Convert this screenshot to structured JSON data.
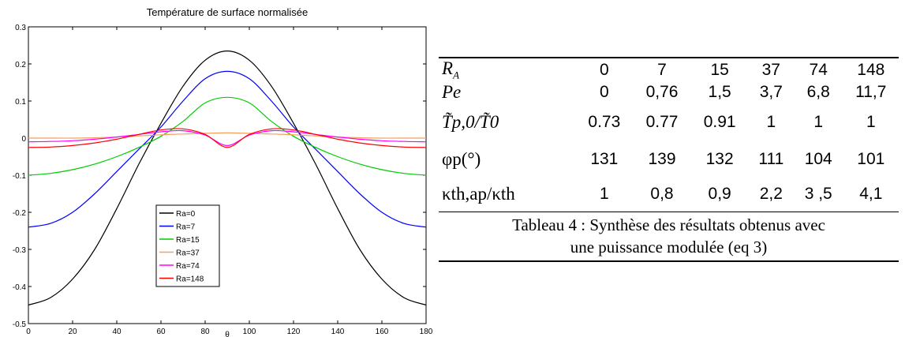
{
  "chart_data": {
    "type": "line",
    "title": "Température de surface normalisée",
    "xlabel": "θ",
    "ylabel": "",
    "xlim": [
      0,
      180
    ],
    "ylim": [
      -0.5,
      0.3
    ],
    "xticks": [
      "0",
      "20",
      "40",
      "60",
      "80",
      "100",
      "120",
      "140",
      "160",
      "180"
    ],
    "yticks": [
      "-0.5",
      "-0.4",
      "-0.3",
      "-0.2",
      "-0.1",
      "0",
      "0.1",
      "0.2",
      "0.3"
    ],
    "grid": false,
    "legend_position": "lower-center",
    "x": [
      0,
      10,
      20,
      30,
      40,
      50,
      60,
      70,
      80,
      90,
      100,
      110,
      120,
      130,
      140,
      150,
      160,
      170,
      180
    ],
    "series": [
      {
        "name": "Ra=0",
        "color": "#000000",
        "values": [
          -0.45,
          -0.43,
          -0.38,
          -0.3,
          -0.19,
          -0.07,
          0.04,
          0.14,
          0.21,
          0.235,
          0.21,
          0.14,
          0.04,
          -0.07,
          -0.19,
          -0.3,
          -0.38,
          -0.43,
          -0.45
        ]
      },
      {
        "name": "Ra=7",
        "color": "#0000ff",
        "values": [
          -0.24,
          -0.23,
          -0.2,
          -0.15,
          -0.09,
          -0.03,
          0.03,
          0.1,
          0.16,
          0.18,
          0.16,
          0.1,
          0.03,
          -0.03,
          -0.09,
          -0.15,
          -0.2,
          -0.23,
          -0.24
        ]
      },
      {
        "name": "Ra=15",
        "color": "#00cc00",
        "values": [
          -0.1,
          -0.095,
          -0.085,
          -0.07,
          -0.05,
          -0.025,
          0.005,
          0.045,
          0.095,
          0.11,
          0.095,
          0.045,
          0.005,
          -0.025,
          -0.05,
          -0.07,
          -0.085,
          -0.095,
          -0.1
        ]
      },
      {
        "name": "Ra=37",
        "color": "#f5a060",
        "values": [
          0,
          0,
          0,
          0.001,
          0.003,
          0.006,
          0.009,
          0.011,
          0.013,
          0.014,
          0.013,
          0.011,
          0.009,
          0.006,
          0.003,
          0.001,
          0,
          0,
          0
        ]
      },
      {
        "name": "Ra=74",
        "color": "#ff00ff",
        "values": [
          -0.01,
          -0.009,
          -0.007,
          -0.003,
          0.003,
          0.01,
          0.017,
          0.02,
          0.008,
          -0.02,
          0.008,
          0.02,
          0.017,
          0.01,
          0.003,
          -0.003,
          -0.007,
          -0.009,
          -0.01
        ]
      },
      {
        "name": "Ra=148",
        "color": "#ff0000",
        "values": [
          -0.025,
          -0.024,
          -0.02,
          -0.013,
          -0.003,
          0.01,
          0.022,
          0.025,
          0.01,
          -0.025,
          0.01,
          0.025,
          0.022,
          0.01,
          -0.003,
          -0.013,
          -0.02,
          -0.024,
          -0.025
        ]
      }
    ]
  },
  "table": {
    "rows": [
      {
        "label": "R",
        "sub": "A",
        "values": [
          "0",
          "7",
          "15",
          "37",
          "74",
          "148"
        ]
      },
      {
        "label": "Pe",
        "values": [
          "0",
          "0,76",
          "1,5",
          "3,7",
          "6,8",
          "11,7"
        ]
      },
      {
        "label": "T̃p,0/T̃0",
        "values": [
          "0.73",
          "0.77",
          "0.91",
          "1",
          "1",
          "1"
        ]
      },
      {
        "label": "φp(°)",
        "values": [
          "131",
          "139",
          "132",
          "111",
          "104",
          "101"
        ]
      },
      {
        "label": "κth,ap/κth",
        "values": [
          "1",
          "0,8",
          "0,9",
          "2,2",
          "3 ,5",
          "4,1"
        ]
      }
    ],
    "caption_line1": "Tableau 4 : Synthèse des résultats obtenus avec",
    "caption_line2": "une puissance modulée (eq 3)"
  }
}
